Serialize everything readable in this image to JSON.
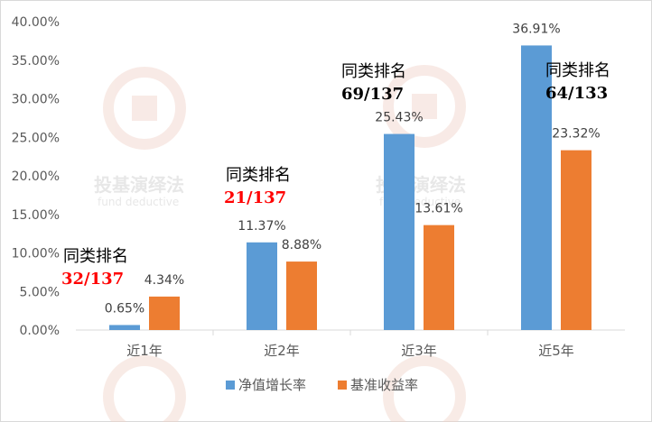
{
  "chart_data": {
    "type": "bar",
    "categories": [
      "近1年",
      "近2年",
      "近3年",
      "近5年"
    ],
    "series": [
      {
        "name": "净值增长率",
        "values": [
          0.65,
          11.37,
          25.43,
          36.91
        ],
        "labels": [
          "0.65%",
          "11.37%",
          "25.43%",
          "36.91%"
        ],
        "color": "#5b9bd5"
      },
      {
        "name": "基准收益率",
        "values": [
          4.34,
          8.88,
          13.61,
          23.32
        ],
        "labels": [
          "4.34%",
          "8.88%",
          "13.61%",
          "23.32%"
        ],
        "color": "#ed7d31"
      }
    ],
    "ylim": [
      0,
      40
    ],
    "yticks": [
      "0.00%",
      "5.00%",
      "10.00%",
      "15.00%",
      "20.00%",
      "25.00%",
      "30.00%",
      "35.00%",
      "40.00%"
    ],
    "grid": false,
    "legend_position": "bottom",
    "annotations": [
      {
        "title": "同类排名",
        "rank": "32/137",
        "color": "#ff0000"
      },
      {
        "title": "同类排名",
        "rank": "21/137",
        "color": "#ff0000"
      },
      {
        "title": "同类排名",
        "rank": "69/137",
        "color": "#000000"
      },
      {
        "title": "同类排名",
        "rank": "64/133",
        "color": "#000000"
      }
    ]
  },
  "watermark": {
    "title": "投基演绎法",
    "subtitle": "fund deductive"
  }
}
